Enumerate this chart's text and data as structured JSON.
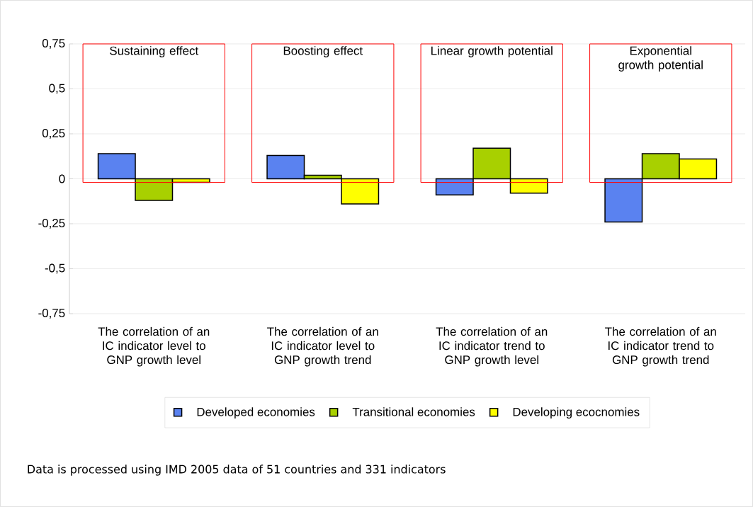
{
  "chart_data": {
    "type": "bar",
    "categories": [
      "The correlation of an IC indicator level to GNP growth level",
      "The correlation of an IC indicator level to GNP growth trend",
      "The correlation of an IC indicator trend to GNP growth level",
      "The correlation of an IC indicator trend to GNP growth trend"
    ],
    "series": [
      {
        "name": "Developed economies",
        "color": "#5a82f0",
        "values": [
          0.14,
          0.13,
          -0.09,
          -0.24
        ]
      },
      {
        "name": "Transitional economies",
        "color": "#a8d000",
        "values": [
          -0.12,
          0.02,
          0.17,
          0.14
        ]
      },
      {
        "name": "Developing ecocnomies",
        "color": "#ffff00",
        "values": [
          -0.02,
          -0.14,
          -0.08,
          0.11
        ]
      }
    ],
    "ylim": [
      -0.75,
      0.75
    ],
    "yticks": [
      {
        "value": -0.75,
        "label": "-0,75"
      },
      {
        "value": -0.5,
        "label": "-0,5"
      },
      {
        "value": -0.25,
        "label": "-0,25"
      },
      {
        "value": 0,
        "label": "0"
      },
      {
        "value": 0.25,
        "label": "0,25"
      },
      {
        "value": 0.5,
        "label": "0,5"
      },
      {
        "value": 0.75,
        "label": "0,75"
      }
    ],
    "grid": "y",
    "legend": "bottom",
    "annotations": [
      "Sustaining effect",
      "Boosting effect",
      "Linear growth potential",
      "Exponential growth potential",
      "Data is processed using IMD 2005 data of 51 countries and 331 indicators"
    ]
  }
}
